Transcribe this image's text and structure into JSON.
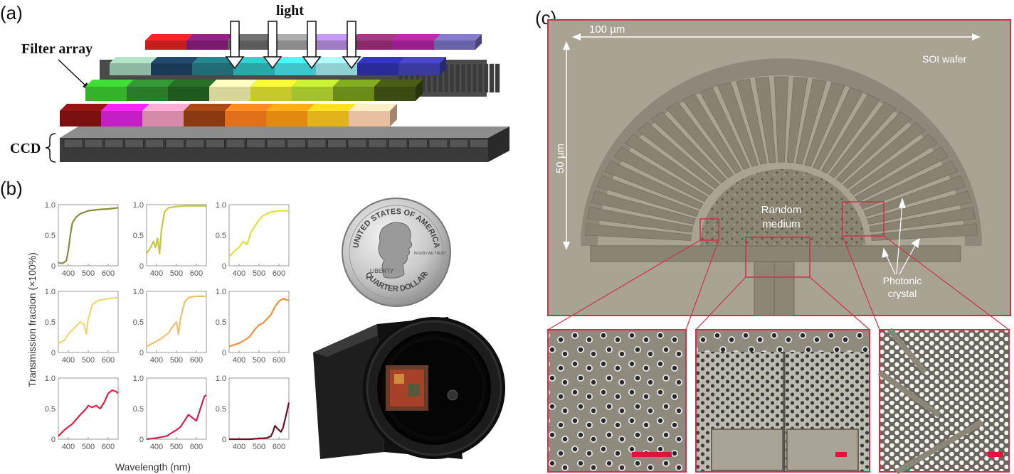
{
  "panels": {
    "a": {
      "label": "(a)",
      "light_label": "light",
      "filter_array_label": "Filter array",
      "ccd_label": "CCD",
      "colors": {
        "row1": [
          "#c41e1e",
          "#7a1a6e",
          "#5c5c5c",
          "#8b8b8b",
          "#9e7cc4",
          "#8a2a6a",
          "#9a2090",
          "#6a62a8"
        ],
        "row2": [
          "#8fb8a0",
          "#1b3a58",
          "#1f6c74",
          "#2aa7a7",
          "#3fc6cc",
          "#8fd0d4",
          "#2a2a9a",
          "#3a3aa0"
        ],
        "row3": [
          "#33b22a",
          "#2a7a2a",
          "#1e5a1e",
          "#d6d69a",
          "#c8c82a",
          "#a4c22a",
          "#6a8a1a",
          "#3a4a10"
        ],
        "row4": [
          "#7a1010",
          "#c41ec4",
          "#d68aaa",
          "#8a3a10",
          "#e0701a",
          "#e08a10",
          "#e0b41a",
          "#e8c0a0"
        ]
      }
    },
    "b": {
      "label": "(b)",
      "ylabel": "Transmission fraction (×100%)",
      "xlabel": "Wavelength (nm)",
      "coin_text": {
        "top": "UNITED STATES OF AMERICA",
        "bottom": "QUARTER DOLLAR",
        "liberty": "LIBERTY",
        "motto": "IN GOD WE TRUST",
        "mint": "D"
      }
    },
    "c": {
      "label": "(c)",
      "scale_horizontal": "100 µm",
      "scale_vertical": "50 µm",
      "soi_label": "SOI wafer",
      "random_label_1": "Random",
      "random_label_2": "medium",
      "photonic_label_1": "Photonic",
      "photonic_label_2": "crystal"
    }
  },
  "chart_data": {
    "type": "line",
    "layout": "3x3 small multiples",
    "xlabel": "Wavelength (nm)",
    "ylabel": "Transmission fraction (×100%)",
    "xlim": [
      350,
      650
    ],
    "ylim": [
      0,
      1
    ],
    "xticks": [
      400,
      500,
      600
    ],
    "yticks": [
      0,
      0.5,
      1.0
    ],
    "ytick_labels": [
      "0",
      "0.5",
      "1.0"
    ],
    "series": [
      {
        "color": "#8a8a3a",
        "x": [
          350,
          370,
          390,
          400,
          410,
          420,
          440,
          460,
          500,
          550,
          600,
          650
        ],
        "y": [
          0.05,
          0.04,
          0.08,
          0.25,
          0.5,
          0.7,
          0.8,
          0.85,
          0.9,
          0.92,
          0.93,
          0.95
        ]
      },
      {
        "color": "#c8c840",
        "x": [
          350,
          370,
          385,
          395,
          405,
          415,
          425,
          440,
          460,
          500,
          550,
          600,
          650
        ],
        "y": [
          0.2,
          0.3,
          0.4,
          0.3,
          0.45,
          0.2,
          0.6,
          0.88,
          0.95,
          0.97,
          0.98,
          0.98,
          0.98
        ]
      },
      {
        "color": "#e0e040",
        "x": [
          350,
          380,
          400,
          420,
          440,
          460,
          480,
          500,
          520,
          560,
          600,
          650
        ],
        "y": [
          0.15,
          0.25,
          0.3,
          0.4,
          0.35,
          0.55,
          0.65,
          0.75,
          0.82,
          0.88,
          0.9,
          0.9
        ]
      },
      {
        "color": "#f0d870",
        "x": [
          350,
          380,
          400,
          430,
          460,
          480,
          490,
          500,
          520,
          550,
          600,
          650
        ],
        "y": [
          0.15,
          0.2,
          0.3,
          0.4,
          0.5,
          0.45,
          0.3,
          0.55,
          0.78,
          0.85,
          0.88,
          0.9
        ]
      },
      {
        "color": "#f0c070",
        "x": [
          350,
          380,
          420,
          460,
          480,
          500,
          510,
          520,
          540,
          560,
          600,
          650
        ],
        "y": [
          0.1,
          0.15,
          0.22,
          0.32,
          0.42,
          0.5,
          0.3,
          0.55,
          0.82,
          0.9,
          0.92,
          0.92
        ]
      },
      {
        "color": "#f09040",
        "x": [
          350,
          400,
          450,
          480,
          500,
          520,
          540,
          560,
          580,
          600,
          620,
          650
        ],
        "y": [
          0.1,
          0.15,
          0.25,
          0.38,
          0.45,
          0.48,
          0.55,
          0.62,
          0.75,
          0.84,
          0.88,
          0.85
        ]
      },
      {
        "color": "#e02040",
        "x": [
          350,
          380,
          420,
          460,
          490,
          500,
          520,
          540,
          560,
          580,
          600,
          620,
          640,
          650
        ],
        "y": [
          0.05,
          0.15,
          0.25,
          0.4,
          0.5,
          0.55,
          0.52,
          0.55,
          0.5,
          0.6,
          0.75,
          0.8,
          0.78,
          0.75
        ]
      },
      {
        "color": "#d02050",
        "x": [
          350,
          400,
          450,
          500,
          520,
          540,
          560,
          580,
          600,
          620,
          640,
          650
        ],
        "y": [
          0.0,
          0.02,
          0.05,
          0.15,
          0.2,
          0.3,
          0.4,
          0.35,
          0.3,
          0.5,
          0.7,
          0.72
        ]
      },
      {
        "color": "#6a1020",
        "x": [
          350,
          400,
          450,
          500,
          540,
          560,
          570,
          580,
          590,
          600,
          610,
          620,
          640,
          650
        ],
        "y": [
          0.0,
          0.0,
          0.0,
          0.01,
          0.02,
          0.05,
          0.12,
          0.22,
          0.18,
          0.15,
          0.12,
          0.18,
          0.45,
          0.6
        ]
      }
    ]
  }
}
